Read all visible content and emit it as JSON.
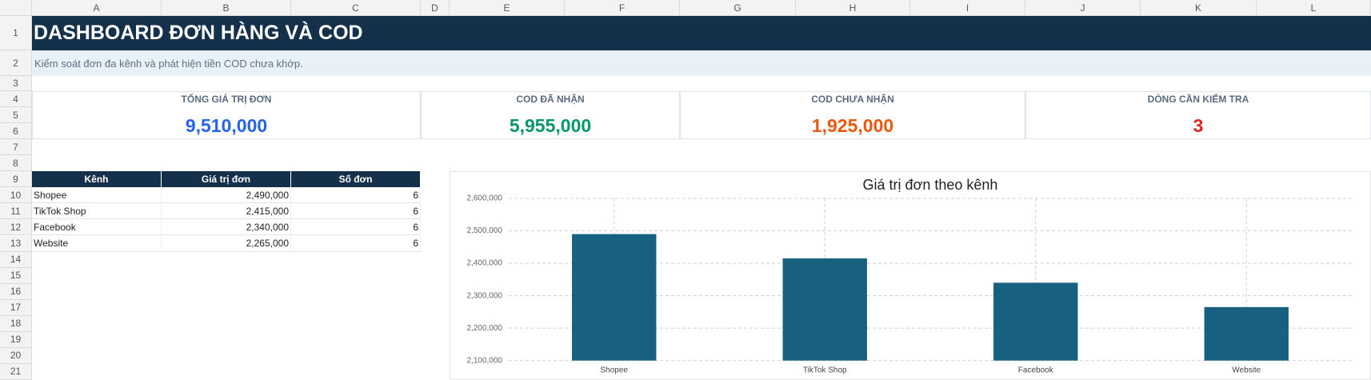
{
  "spreadsheet": {
    "columns": [
      "A",
      "B",
      "C",
      "D",
      "E",
      "F",
      "G",
      "H",
      "I",
      "J",
      "K",
      "L"
    ],
    "row_numbers": [
      1,
      2,
      3,
      4,
      5,
      6,
      7,
      8,
      9,
      10,
      11,
      12,
      13,
      14,
      15,
      16,
      17,
      18,
      19,
      20,
      21
    ]
  },
  "header": {
    "title": "DASHBOARD ĐƠN HÀNG VÀ COD",
    "subtitle": "Kiểm soát đơn đa kênh và phát hiện tiền COD chưa khớp."
  },
  "kpis": [
    {
      "label": "TỔNG GIÁ TRỊ ĐƠN",
      "value": "9,510,000",
      "color": "#2563eb"
    },
    {
      "label": "COD ĐÃ NHẬN",
      "value": "5,955,000",
      "color": "#059669"
    },
    {
      "label": "COD CHƯA NHẬN",
      "value": "1,925,000",
      "color": "#ea580c"
    },
    {
      "label": "DÒNG CẦN KIỂM TRA",
      "value": "3",
      "color": "#dc2626"
    }
  ],
  "table": {
    "columns": [
      "Kênh",
      "Giá trị đơn",
      "Số đơn"
    ],
    "rows": [
      [
        "Shopee",
        "2,490,000",
        "6"
      ],
      [
        "TikTok Shop",
        "2,415,000",
        "6"
      ],
      [
        "Facebook",
        "2,340,000",
        "6"
      ],
      [
        "Website",
        "2,265,000",
        "6"
      ]
    ]
  },
  "chart_data": {
    "type": "bar",
    "title": "Giá trị đơn theo kênh",
    "categories": [
      "Shopee",
      "TikTok Shop",
      "Facebook",
      "Website"
    ],
    "values": [
      2490000,
      2415000,
      2340000,
      2265000
    ],
    "color": "#17607f",
    "ylim": [
      2100000,
      2600000
    ],
    "yticks": [
      {
        "value": 2100000,
        "label": "2,100,000"
      },
      {
        "value": 2200000,
        "label": "2,200,000"
      },
      {
        "value": 2300000,
        "label": "2,300,000"
      },
      {
        "value": 2400000,
        "label": "2,400,000"
      },
      {
        "value": 2500000,
        "label": "2,500,000"
      },
      {
        "value": 2600000,
        "label": "2,600,000"
      }
    ],
    "grid": true
  }
}
